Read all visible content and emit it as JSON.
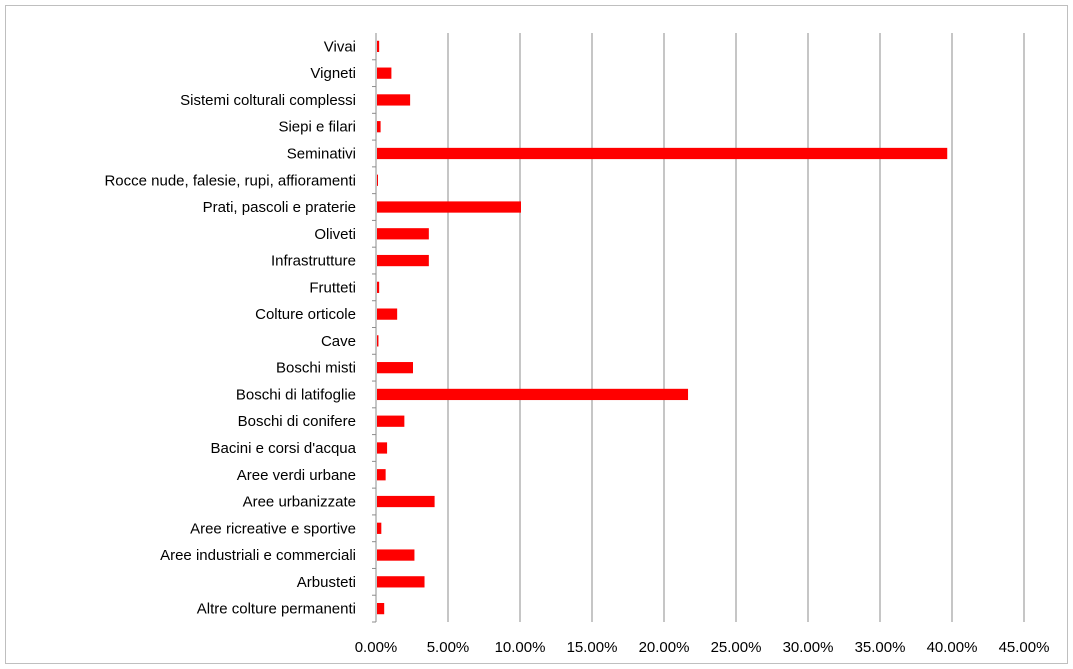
{
  "chart_data": {
    "type": "bar",
    "orientation": "horizontal",
    "title": "",
    "xlabel": "",
    "ylabel": "",
    "categories": [
      "Altre colture permanenti",
      "Arbusteti",
      "Aree industriali e commerciali",
      "Aree ricreative e sportive",
      "Aree urbanizzate",
      "Aree verdi urbane",
      "Bacini e corsi d'acqua",
      "Boschi di conifere",
      "Boschi di latifoglie",
      "Boschi misti",
      "Cave",
      "Colture orticole",
      "Frutteti",
      "Infrastrutture",
      "Oliveti",
      "Prati, pascoli e praterie",
      "Rocce nude, falesie, rupi, affioramenti",
      "Seminativi",
      "Siepi e filari",
      "Sistemi colturali complessi",
      "Vigneti",
      "Vivai"
    ],
    "values": [
      0.5,
      3.3,
      2.6,
      0.3,
      4.0,
      0.6,
      0.7,
      1.9,
      21.6,
      2.5,
      0.1,
      1.4,
      0.15,
      3.6,
      3.6,
      10.0,
      0.05,
      39.6,
      0.25,
      2.3,
      1.0,
      0.15
    ],
    "xlim": [
      0,
      45
    ],
    "x_ticks": [
      "0.00%",
      "5.00%",
      "10.00%",
      "15.00%",
      "20.00%",
      "25.00%",
      "30.00%",
      "35.00%",
      "40.00%",
      "45.00%"
    ],
    "grid": true,
    "legend": "none",
    "bar_color": "#ff0000"
  }
}
